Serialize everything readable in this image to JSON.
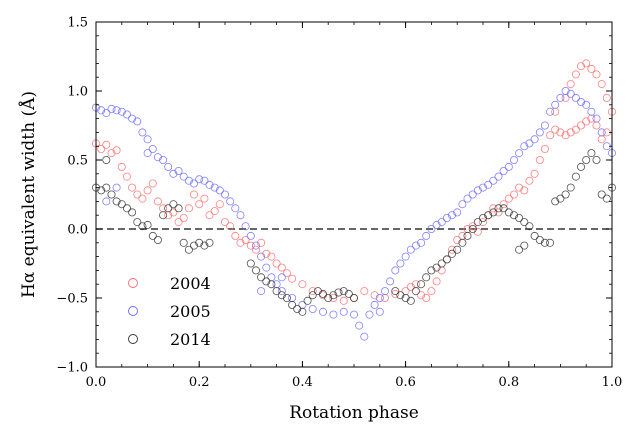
{
  "chart_data": {
    "type": "scatter",
    "title": "",
    "xlabel": "Rotation phase",
    "ylabel": "Hα equivalent width (Å)",
    "xlim": [
      0.0,
      1.0
    ],
    "ylim": [
      -1.0,
      1.5
    ],
    "x_ticks": [
      "0.0",
      "0.2",
      "0.4",
      "0.6",
      "0.8",
      "1.0"
    ],
    "y_ticks": [
      "−1.0",
      "−0.5",
      "0.0",
      "0.5",
      "1.0",
      "1.5"
    ],
    "reference_line": {
      "y": 0.0,
      "style": "dashed"
    },
    "grid": false,
    "legend_position": "lower-left",
    "marker": "open-circle",
    "series": [
      {
        "name": "2004",
        "color": "#ff6b6b",
        "points": [
          [
            0.0,
            0.62
          ],
          [
            0.01,
            0.58
          ],
          [
            0.02,
            0.61
          ],
          [
            0.03,
            0.55
          ],
          [
            0.04,
            0.57
          ],
          [
            0.05,
            0.45
          ],
          [
            0.06,
            0.38
          ],
          [
            0.07,
            0.3
          ],
          [
            0.08,
            0.25
          ],
          [
            0.09,
            0.22
          ],
          [
            0.1,
            0.28
          ],
          [
            0.11,
            0.33
          ],
          [
            0.12,
            0.2
          ],
          [
            0.13,
            0.15
          ],
          [
            0.14,
            0.1
          ],
          [
            0.15,
            0.12
          ],
          [
            0.16,
            0.05
          ],
          [
            0.17,
            0.08
          ],
          [
            0.18,
            0.15
          ],
          [
            0.19,
            0.25
          ],
          [
            0.2,
            0.18
          ],
          [
            0.21,
            0.22
          ],
          [
            0.22,
            0.1
          ],
          [
            0.23,
            0.13
          ],
          [
            0.24,
            0.18
          ],
          [
            0.25,
            0.05
          ],
          [
            0.26,
            0.02
          ],
          [
            0.27,
            -0.05
          ],
          [
            0.28,
            -0.1
          ],
          [
            0.29,
            -0.08
          ],
          [
            0.3,
            -0.12
          ],
          [
            0.31,
            -0.15
          ],
          [
            0.32,
            -0.1
          ],
          [
            0.33,
            -0.18
          ],
          [
            0.34,
            -0.2
          ],
          [
            0.35,
            -0.25
          ],
          [
            0.36,
            -0.28
          ],
          [
            0.37,
            -0.32
          ],
          [
            0.38,
            -0.36
          ],
          [
            0.4,
            -0.4
          ],
          [
            0.42,
            -0.45
          ],
          [
            0.44,
            -0.48
          ],
          [
            0.46,
            -0.5
          ],
          [
            0.48,
            -0.52
          ],
          [
            0.5,
            -0.5
          ],
          [
            0.52,
            -0.45
          ],
          [
            0.54,
            -0.48
          ],
          [
            0.56,
            -0.5
          ],
          [
            0.58,
            -0.47
          ],
          [
            0.6,
            -0.45
          ],
          [
            0.61,
            -0.42
          ],
          [
            0.62,
            -0.4
          ],
          [
            0.63,
            -0.48
          ],
          [
            0.64,
            -0.5
          ],
          [
            0.65,
            -0.45
          ],
          [
            0.66,
            -0.38
          ],
          [
            0.67,
            -0.3
          ],
          [
            0.68,
            -0.22
          ],
          [
            0.69,
            -0.15
          ],
          [
            0.7,
            -0.08
          ],
          [
            0.71,
            -0.05
          ],
          [
            0.72,
            0.0
          ],
          [
            0.73,
            0.02
          ],
          [
            0.74,
            -0.02
          ],
          [
            0.75,
            0.05
          ],
          [
            0.76,
            0.1
          ],
          [
            0.77,
            0.15
          ],
          [
            0.78,
            0.12
          ],
          [
            0.79,
            0.18
          ],
          [
            0.8,
            0.22
          ],
          [
            0.81,
            0.25
          ],
          [
            0.82,
            0.3
          ],
          [
            0.83,
            0.28
          ],
          [
            0.84,
            0.35
          ],
          [
            0.85,
            0.4
          ],
          [
            0.86,
            0.5
          ],
          [
            0.87,
            0.58
          ],
          [
            0.88,
            0.68
          ],
          [
            0.89,
            0.72
          ],
          [
            0.9,
            0.7
          ],
          [
            0.91,
            0.68
          ],
          [
            0.92,
            0.7
          ],
          [
            0.93,
            0.72
          ],
          [
            0.94,
            0.75
          ],
          [
            0.95,
            0.78
          ],
          [
            0.96,
            0.8
          ],
          [
            0.97,
            0.75
          ],
          [
            0.98,
            0.65
          ],
          [
            0.99,
            0.7
          ],
          [
            1.0,
            0.85
          ],
          [
            0.91,
            0.95
          ],
          [
            0.92,
            1.05
          ],
          [
            0.93,
            1.12
          ],
          [
            0.94,
            1.18
          ],
          [
            0.95,
            1.2
          ],
          [
            0.96,
            1.16
          ],
          [
            0.97,
            1.12
          ],
          [
            0.98,
            1.05
          ],
          [
            0.99,
            0.95
          ],
          [
            0.89,
            0.85
          ]
        ]
      },
      {
        "name": "2005",
        "color": "#6b6bff",
        "points": [
          [
            0.0,
            0.88
          ],
          [
            0.01,
            0.86
          ],
          [
            0.02,
            0.84
          ],
          [
            0.03,
            0.87
          ],
          [
            0.04,
            0.86
          ],
          [
            0.05,
            0.85
          ],
          [
            0.06,
            0.83
          ],
          [
            0.07,
            0.8
          ],
          [
            0.08,
            0.78
          ],
          [
            0.09,
            0.7
          ],
          [
            0.1,
            0.65
          ],
          [
            0.11,
            0.58
          ],
          [
            0.12,
            0.52
          ],
          [
            0.13,
            0.5
          ],
          [
            0.14,
            0.45
          ],
          [
            0.15,
            0.4
          ],
          [
            0.16,
            0.42
          ],
          [
            0.17,
            0.38
          ],
          [
            0.18,
            0.35
          ],
          [
            0.19,
            0.33
          ],
          [
            0.2,
            0.36
          ],
          [
            0.21,
            0.35
          ],
          [
            0.22,
            0.32
          ],
          [
            0.23,
            0.3
          ],
          [
            0.24,
            0.28
          ],
          [
            0.25,
            0.25
          ],
          [
            0.26,
            0.2
          ],
          [
            0.27,
            0.15
          ],
          [
            0.28,
            0.1
          ],
          [
            0.29,
            0.02
          ],
          [
            0.3,
            -0.05
          ],
          [
            0.31,
            -0.12
          ],
          [
            0.32,
            -0.2
          ],
          [
            0.33,
            -0.28
          ],
          [
            0.34,
            -0.35
          ],
          [
            0.35,
            -0.4
          ],
          [
            0.36,
            -0.45
          ],
          [
            0.38,
            -0.5
          ],
          [
            0.4,
            -0.55
          ],
          [
            0.42,
            -0.58
          ],
          [
            0.44,
            -0.6
          ],
          [
            0.46,
            -0.62
          ],
          [
            0.48,
            -0.6
          ],
          [
            0.5,
            -0.62
          ],
          [
            0.51,
            -0.7
          ],
          [
            0.52,
            -0.78
          ],
          [
            0.53,
            -0.62
          ],
          [
            0.54,
            -0.55
          ],
          [
            0.55,
            -0.5
          ],
          [
            0.56,
            -0.45
          ],
          [
            0.57,
            -0.38
          ],
          [
            0.58,
            -0.3
          ],
          [
            0.59,
            -0.25
          ],
          [
            0.6,
            -0.2
          ],
          [
            0.61,
            -0.15
          ],
          [
            0.62,
            -0.12
          ],
          [
            0.63,
            -0.1
          ],
          [
            0.64,
            -0.05
          ],
          [
            0.65,
            0.0
          ],
          [
            0.66,
            0.03
          ],
          [
            0.67,
            0.05
          ],
          [
            0.68,
            0.08
          ],
          [
            0.69,
            0.1
          ],
          [
            0.7,
            0.12
          ],
          [
            0.71,
            0.18
          ],
          [
            0.72,
            0.22
          ],
          [
            0.73,
            0.25
          ],
          [
            0.74,
            0.28
          ],
          [
            0.75,
            0.3
          ],
          [
            0.76,
            0.32
          ],
          [
            0.77,
            0.35
          ],
          [
            0.78,
            0.38
          ],
          [
            0.79,
            0.42
          ],
          [
            0.8,
            0.45
          ],
          [
            0.81,
            0.5
          ],
          [
            0.82,
            0.55
          ],
          [
            0.83,
            0.6
          ],
          [
            0.84,
            0.62
          ],
          [
            0.85,
            0.65
          ],
          [
            0.86,
            0.7
          ],
          [
            0.87,
            0.75
          ],
          [
            0.88,
            0.85
          ],
          [
            0.89,
            0.9
          ],
          [
            0.9,
            0.95
          ],
          [
            0.91,
            1.0
          ],
          [
            0.92,
            0.98
          ],
          [
            0.93,
            0.95
          ],
          [
            0.94,
            0.92
          ],
          [
            0.95,
            0.9
          ],
          [
            0.96,
            0.85
          ],
          [
            0.97,
            0.8
          ],
          [
            0.98,
            0.7
          ],
          [
            0.99,
            0.6
          ],
          [
            1.0,
            0.55
          ],
          [
            0.02,
            0.2
          ],
          [
            0.04,
            0.3
          ],
          [
            0.1,
            0.55
          ],
          [
            0.32,
            -0.45
          ],
          [
            0.36,
            -0.35
          ],
          [
            0.55,
            -0.6
          ]
        ]
      },
      {
        "name": "2014",
        "color": "#333333",
        "points": [
          [
            0.0,
            0.3
          ],
          [
            0.01,
            0.28
          ],
          [
            0.02,
            0.3
          ],
          [
            0.03,
            0.25
          ],
          [
            0.04,
            0.2
          ],
          [
            0.05,
            0.18
          ],
          [
            0.06,
            0.15
          ],
          [
            0.07,
            0.12
          ],
          [
            0.08,
            0.05
          ],
          [
            0.09,
            0.02
          ],
          [
            0.1,
            0.03
          ],
          [
            0.11,
            -0.05
          ],
          [
            0.12,
            -0.08
          ],
          [
            0.13,
            0.1
          ],
          [
            0.14,
            0.15
          ],
          [
            0.15,
            0.18
          ],
          [
            0.16,
            0.15
          ],
          [
            0.17,
            -0.1
          ],
          [
            0.18,
            -0.15
          ],
          [
            0.19,
            -0.12
          ],
          [
            0.2,
            -0.1
          ],
          [
            0.21,
            -0.12
          ],
          [
            0.22,
            -0.1
          ],
          [
            0.3,
            -0.25
          ],
          [
            0.31,
            -0.3
          ],
          [
            0.32,
            -0.35
          ],
          [
            0.33,
            -0.38
          ],
          [
            0.34,
            -0.4
          ],
          [
            0.35,
            -0.45
          ],
          [
            0.36,
            -0.48
          ],
          [
            0.37,
            -0.5
          ],
          [
            0.38,
            -0.55
          ],
          [
            0.39,
            -0.58
          ],
          [
            0.4,
            -0.6
          ],
          [
            0.41,
            -0.52
          ],
          [
            0.42,
            -0.48
          ],
          [
            0.43,
            -0.45
          ],
          [
            0.44,
            -0.47
          ],
          [
            0.45,
            -0.5
          ],
          [
            0.46,
            -0.48
          ],
          [
            0.47,
            -0.46
          ],
          [
            0.48,
            -0.45
          ],
          [
            0.49,
            -0.47
          ],
          [
            0.5,
            -0.5
          ],
          [
            0.58,
            -0.45
          ],
          [
            0.59,
            -0.48
          ],
          [
            0.6,
            -0.5
          ],
          [
            0.61,
            -0.52
          ],
          [
            0.62,
            -0.45
          ],
          [
            0.63,
            -0.4
          ],
          [
            0.64,
            -0.35
          ],
          [
            0.65,
            -0.3
          ],
          [
            0.66,
            -0.28
          ],
          [
            0.67,
            -0.25
          ],
          [
            0.68,
            -0.22
          ],
          [
            0.69,
            -0.18
          ],
          [
            0.7,
            -0.15
          ],
          [
            0.71,
            -0.1
          ],
          [
            0.72,
            -0.05
          ],
          [
            0.73,
            0.0
          ],
          [
            0.74,
            0.05
          ],
          [
            0.75,
            0.08
          ],
          [
            0.76,
            0.1
          ],
          [
            0.77,
            0.12
          ],
          [
            0.78,
            0.15
          ],
          [
            0.79,
            0.15
          ],
          [
            0.8,
            0.12
          ],
          [
            0.81,
            0.1
          ],
          [
            0.82,
            0.08
          ],
          [
            0.83,
            0.05
          ],
          [
            0.84,
            0.02
          ],
          [
            0.85,
            -0.05
          ],
          [
            0.86,
            -0.08
          ],
          [
            0.87,
            -0.1
          ],
          [
            0.88,
            -0.1
          ],
          [
            0.83,
            -0.12
          ],
          [
            0.82,
            -0.15
          ],
          [
            0.89,
            0.2
          ],
          [
            0.9,
            0.22
          ],
          [
            0.91,
            0.25
          ],
          [
            0.92,
            0.3
          ],
          [
            0.93,
            0.38
          ],
          [
            0.94,
            0.45
          ],
          [
            0.95,
            0.5
          ],
          [
            0.96,
            0.55
          ],
          [
            0.97,
            0.5
          ],
          [
            0.98,
            0.25
          ],
          [
            0.99,
            0.22
          ],
          [
            1.0,
            0.3
          ],
          [
            0.02,
            0.5
          ]
        ]
      }
    ]
  }
}
